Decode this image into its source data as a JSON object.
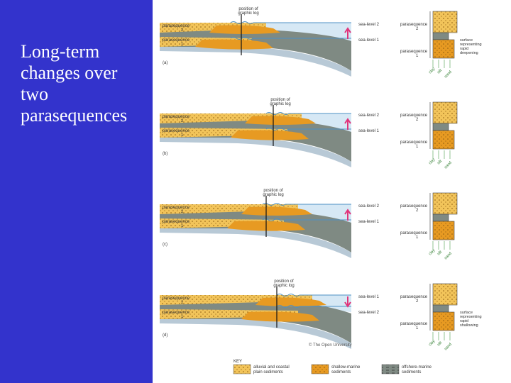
{
  "slide": {
    "title_lines": [
      "Long-term",
      "changes over",
      "two",
      "parasequences"
    ]
  },
  "colors": {
    "sidebar": "#3333cc",
    "sand_light": "#f2c45a",
    "sand_shallow": "#e79a22",
    "mud_offshore": "#7f8a83",
    "sea": "#d6e8f5",
    "sea_line": "#4d90c4",
    "arrow": "#e0337a"
  },
  "panels": [
    {
      "label": "(a)",
      "log_label": [
        "position of",
        "graphic log"
      ],
      "sea_levels": [
        "sea-level 2",
        "sea-level 1"
      ],
      "arrow": "up",
      "parasequence_labels": [
        [
          "parasequence",
          "2"
        ],
        [
          "parasequence",
          "1"
        ]
      ],
      "log_labels": [
        [
          "parasequence",
          "2"
        ],
        [
          "parasequence",
          "1"
        ]
      ],
      "note": [
        "surface",
        "representing",
        "rapid",
        "deepening"
      ],
      "scale": [
        "clay",
        "silt",
        "sand"
      ]
    },
    {
      "label": "(b)",
      "log_label": [
        "position of",
        "graphic log"
      ],
      "sea_levels": [
        "sea-level 2",
        "sea-level 1"
      ],
      "arrow": "up",
      "parasequence_labels": [
        [
          "parasequence",
          "2"
        ],
        [
          "parasequence",
          "1"
        ]
      ],
      "log_labels": [
        [
          "parasequence",
          "2"
        ],
        [
          "parasequence",
          "1"
        ]
      ],
      "note": [],
      "scale": [
        "clay",
        "silt",
        "sand"
      ]
    },
    {
      "label": "(c)",
      "log_label": [
        "position of",
        "graphic log"
      ],
      "sea_levels": [
        "sea-level 2",
        "sea-level 1"
      ],
      "arrow": "up",
      "parasequence_labels": [
        [
          "parasequence",
          "2"
        ],
        [
          "parasequence",
          "1"
        ]
      ],
      "log_labels": [
        [
          "parasequence",
          "2"
        ],
        [
          "parasequence",
          "1"
        ]
      ],
      "note": [],
      "scale": [
        "clay",
        "silt",
        "sand"
      ]
    },
    {
      "label": "(d)",
      "log_label": [
        "position of",
        "graphic log"
      ],
      "sea_levels": [
        "sea-level 1",
        "sea-level 2"
      ],
      "arrow": "down",
      "parasequence_labels": [
        [
          "parasequence",
          "2"
        ],
        [
          "parasequence",
          "1"
        ]
      ],
      "log_labels": [
        [
          "parasequence",
          "2"
        ],
        [
          "parasequence",
          "1"
        ]
      ],
      "note": [
        "surface",
        "representing",
        "rapid",
        "shallowing"
      ],
      "scale": [
        "clay",
        "silt",
        "sand"
      ]
    }
  ],
  "copyright": "© The Open University",
  "key": {
    "title": "KEY",
    "items": [
      {
        "label": [
          "alluvial and coastal",
          "plain sediments"
        ]
      },
      {
        "label": [
          "shallow-marine",
          "sediments"
        ]
      },
      {
        "label": [
          "offshore-marine",
          "sediments"
        ]
      }
    ]
  }
}
